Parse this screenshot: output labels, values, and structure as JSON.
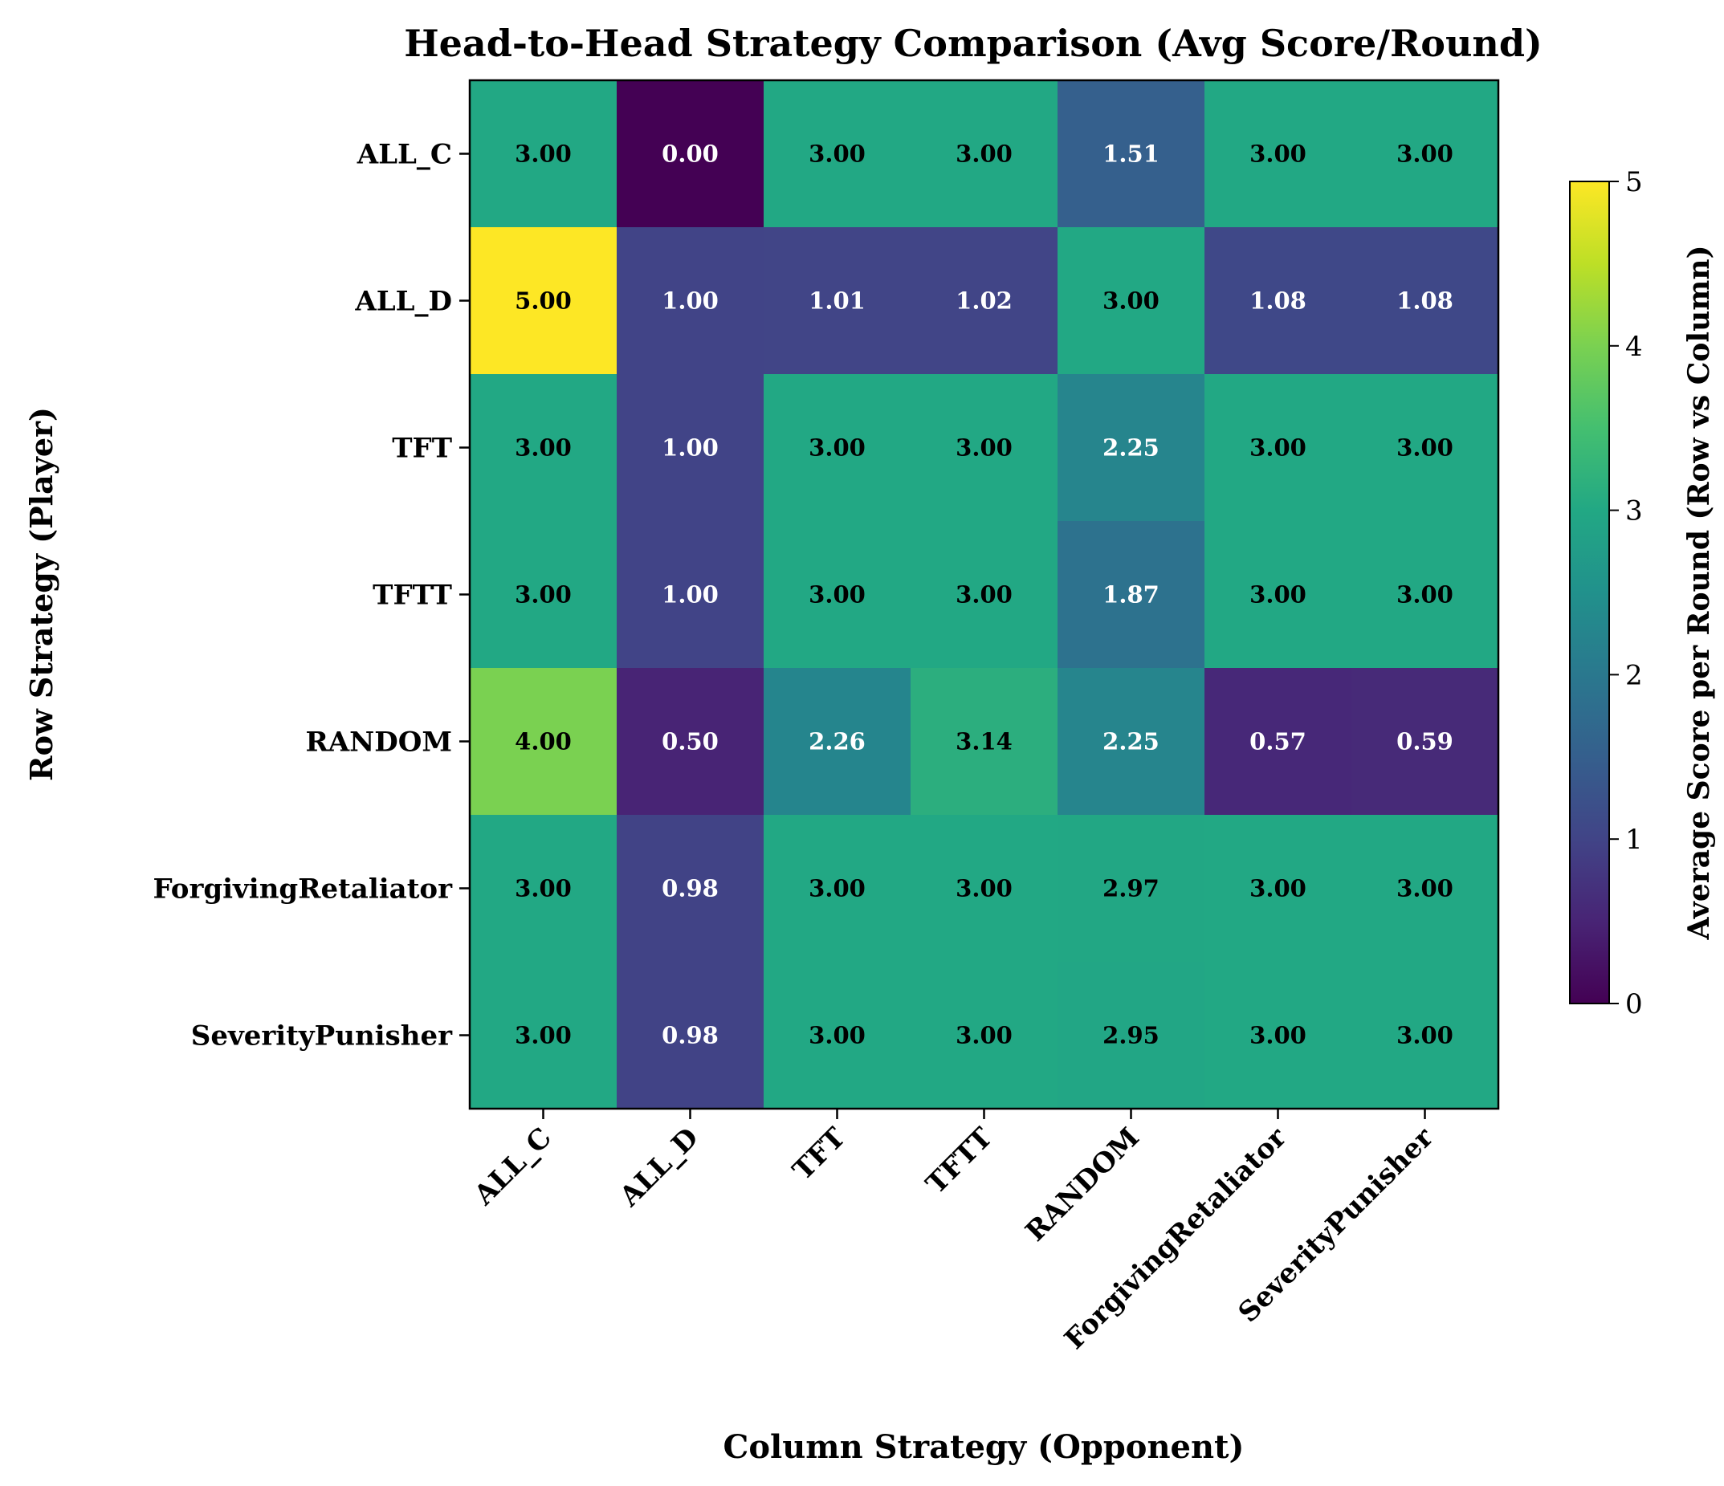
{
  "chart_data": {
    "type": "heatmap",
    "title": "Head-to-Head Strategy Comparison (Avg Score/Round)",
    "xlabel": "Column Strategy (Opponent)",
    "ylabel": "Row Strategy (Player)",
    "rows": [
      "ALL_C",
      "ALL_D",
      "TFT",
      "TFTT",
      "RANDOM",
      "ForgivingRetaliator",
      "SeverityPunisher"
    ],
    "columns": [
      "ALL_C",
      "ALL_D",
      "TFT",
      "TFTT",
      "RANDOM",
      "ForgivingRetaliator",
      "SeverityPunisher"
    ],
    "values": [
      [
        3.0,
        0.0,
        3.0,
        3.0,
        1.51,
        3.0,
        3.0
      ],
      [
        5.0,
        1.0,
        1.01,
        1.02,
        3.0,
        1.08,
        1.08
      ],
      [
        3.0,
        1.0,
        3.0,
        3.0,
        2.25,
        3.0,
        3.0
      ],
      [
        3.0,
        1.0,
        3.0,
        3.0,
        1.87,
        3.0,
        3.0
      ],
      [
        4.0,
        0.5,
        2.26,
        3.14,
        2.25,
        0.57,
        0.59
      ],
      [
        3.0,
        0.98,
        3.0,
        3.0,
        2.97,
        3.0,
        3.0
      ],
      [
        3.0,
        0.98,
        3.0,
        3.0,
        2.95,
        3.0,
        3.0
      ]
    ],
    "colorbar": {
      "label": "Average Score per Round (Row vs Column)",
      "range": [
        0,
        5
      ],
      "ticks": [
        "0",
        "1",
        "2",
        "3",
        "4",
        "5"
      ],
      "colormap": "viridis"
    }
  }
}
